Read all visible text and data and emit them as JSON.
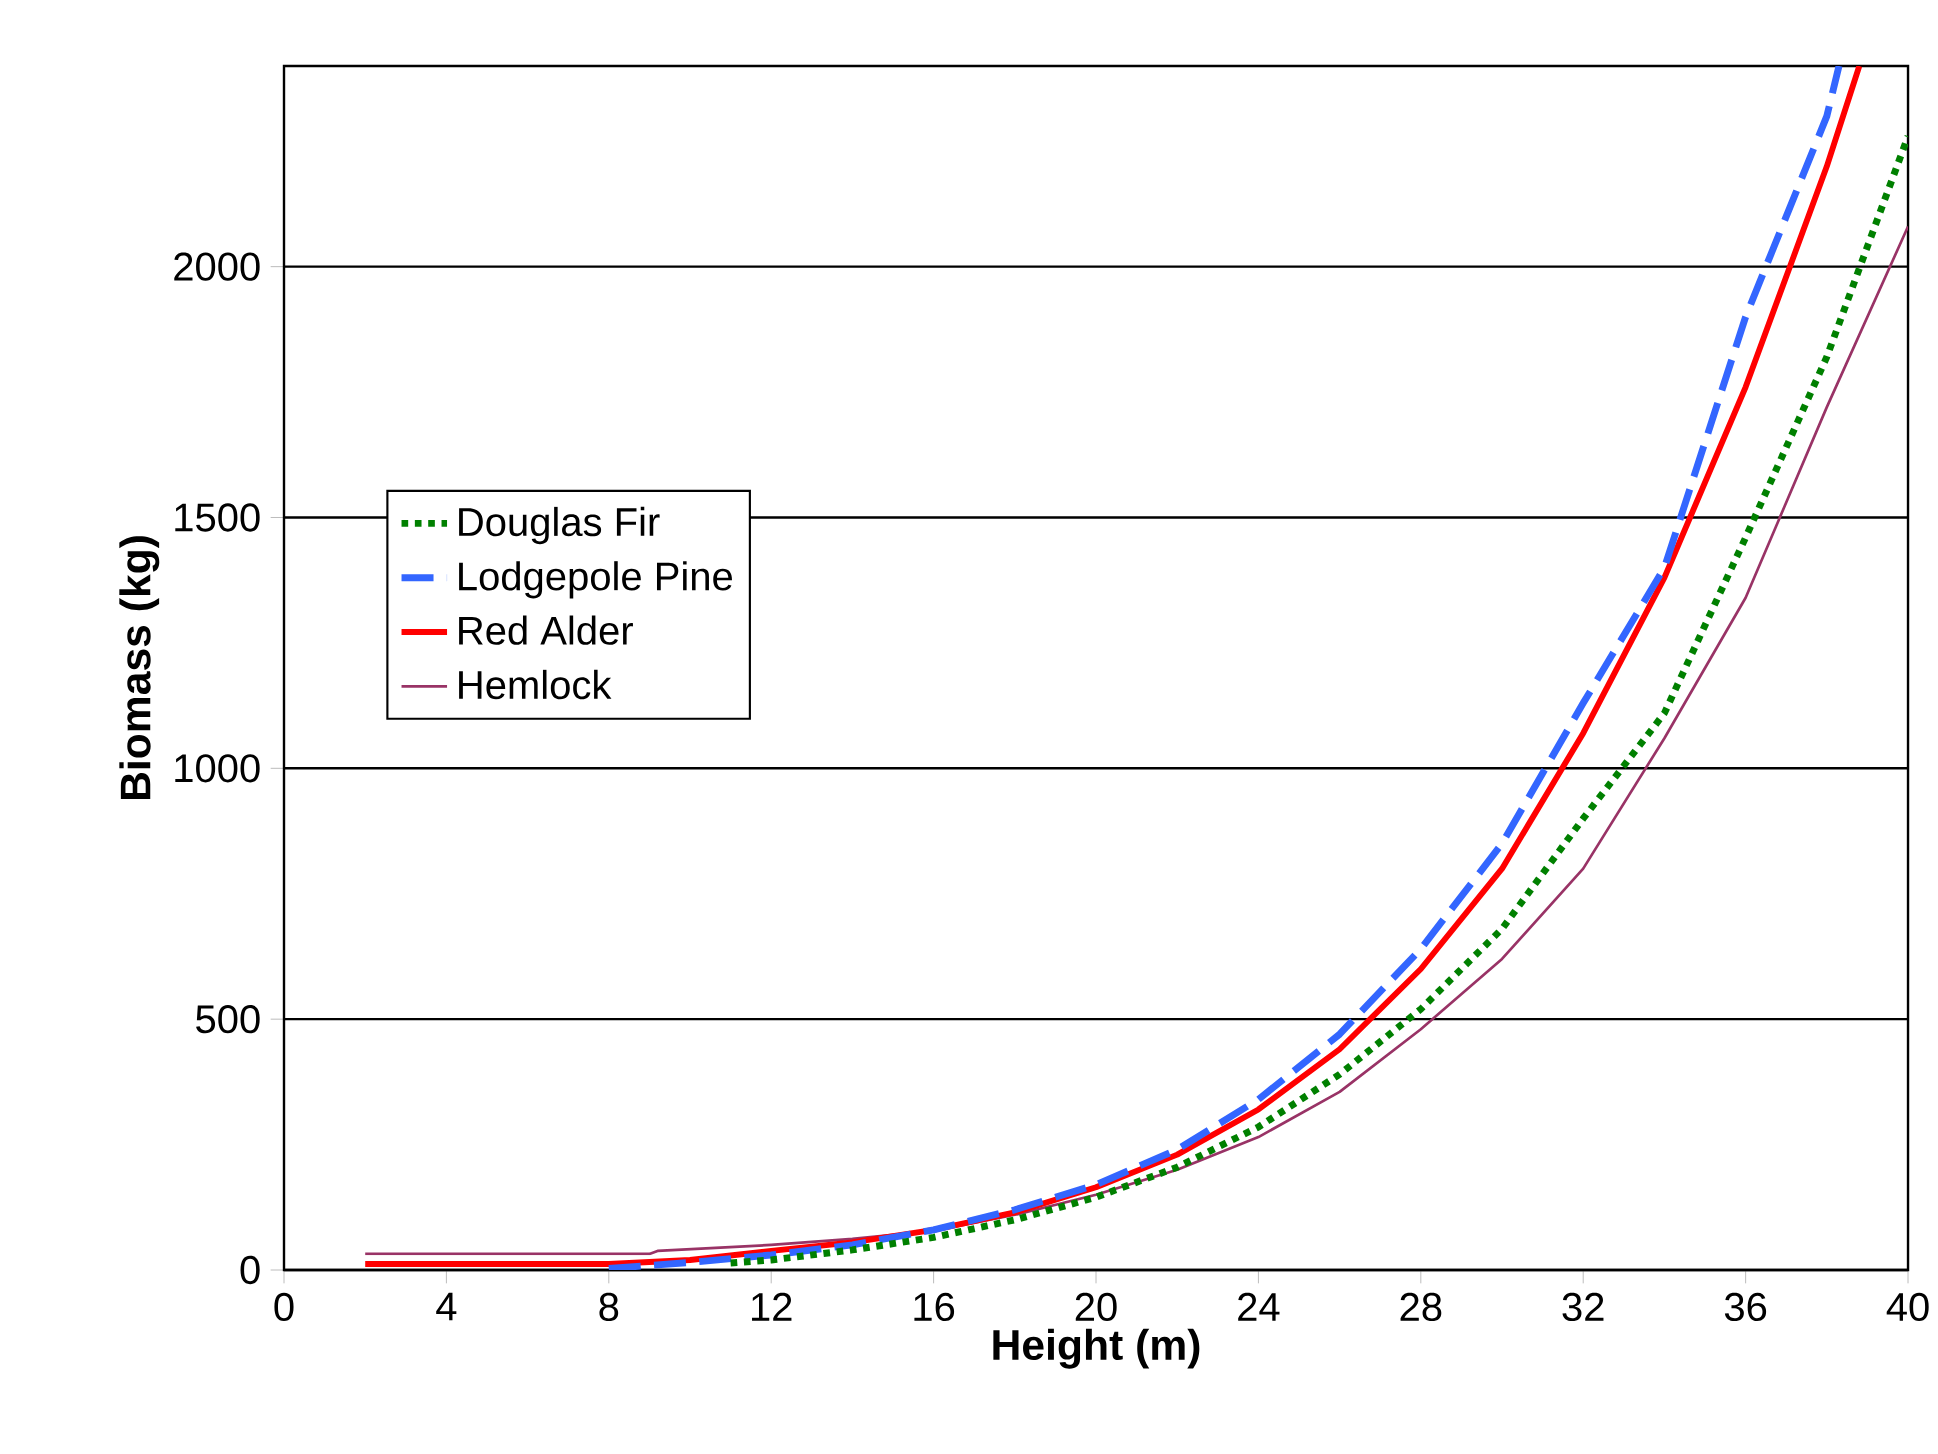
{
  "chart_data": {
    "type": "line",
    "xlabel": "Height (m)",
    "ylabel": "Biomass (kg)",
    "xlim": [
      0,
      40
    ],
    "xticks": [
      0,
      4,
      8,
      12,
      16,
      20,
      24,
      28,
      32,
      36,
      40
    ],
    "ylim": [
      0,
      2400
    ],
    "yticks": [
      0,
      500,
      1000,
      1500,
      2000
    ],
    "grid": "y",
    "legend": "left",
    "marker": "none",
    "series": [
      {
        "name": "Douglas Fir",
        "color": "#008000",
        "line_style": "dotted",
        "x": [
          11,
          12,
          14,
          16,
          18,
          20,
          22,
          24,
          26,
          28,
          30,
          32,
          34,
          36,
          38,
          40
        ],
        "values": [
          14,
          20,
          40,
          65,
          100,
          145,
          205,
          285,
          390,
          520,
          680,
          900,
          1110,
          1460,
          1820,
          2260
        ]
      },
      {
        "name": "Lodgepole Pine",
        "color": "#3366ff",
        "line_style": "dashed",
        "x": [
          8,
          10,
          12,
          14,
          16,
          18,
          20,
          22,
          24,
          26,
          28,
          30,
          32,
          34,
          36,
          38,
          38.3
        ],
        "values": [
          3,
          15,
          30,
          50,
          80,
          120,
          170,
          240,
          340,
          470,
          640,
          850,
          1130,
          1400,
          1900,
          2300,
          2400
        ]
      },
      {
        "name": "Red Alder",
        "color": "#ff0000",
        "line_style": "solid",
        "x": [
          2,
          4,
          6,
          8,
          10,
          12,
          14,
          16,
          18,
          20,
          22,
          24,
          26,
          28,
          30,
          32,
          34,
          36,
          38,
          38.8
        ],
        "values": [
          12,
          12,
          12,
          12,
          20,
          38,
          55,
          80,
          115,
          165,
          230,
          320,
          440,
          600,
          800,
          1070,
          1380,
          1760,
          2200,
          2400
        ]
      },
      {
        "name": "Hemlock",
        "color": "#993366",
        "line_style": "solid",
        "x": [
          2,
          4,
          6,
          8,
          9,
          9.2,
          12,
          14,
          16,
          18,
          20,
          22,
          24,
          26,
          28,
          30,
          32,
          34,
          36,
          38,
          40
        ],
        "values": [
          32,
          32,
          32,
          32,
          32,
          38,
          50,
          62,
          78,
          110,
          150,
          200,
          265,
          355,
          480,
          620,
          800,
          1060,
          1340,
          1720,
          2080
        ]
      }
    ]
  }
}
